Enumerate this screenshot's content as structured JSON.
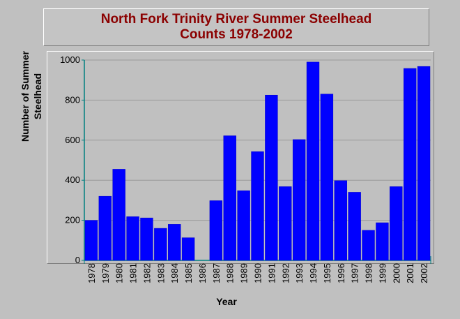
{
  "title_lines": [
    "North Fork Trinity River Summer Steelhead",
    "Counts 1978-2002"
  ],
  "colors": {
    "bar": "#0000ff",
    "background": "#c0c0c0",
    "title": "#8b0000",
    "axis": "#008080"
  },
  "chart_data": {
    "type": "bar",
    "title": "North Fork Trinity River Summer Steelhead Counts 1978-2002",
    "xlabel": "Year",
    "ylabel": "Number of Summer Steelhead",
    "ylim": [
      0,
      1000
    ],
    "yticks": [
      "0",
      "200",
      "400",
      "600",
      "800",
      "1000"
    ],
    "grid": true,
    "legend": "none",
    "categories": [
      "1978",
      "1979",
      "1980",
      "1981",
      "1982",
      "1983",
      "1984",
      "1985",
      "1986",
      "1987",
      "1988",
      "1989",
      "1990",
      "1991",
      "1992",
      "1993",
      "1994",
      "1995",
      "1996",
      "1997",
      "1998",
      "1999",
      "2000",
      "2001",
      "2002"
    ],
    "values": [
      200,
      320,
      455,
      218,
      212,
      160,
      180,
      113,
      0,
      298,
      622,
      348,
      543,
      825,
      368,
      603,
      990,
      830,
      398,
      340,
      150,
      188,
      368,
      958,
      968
    ]
  }
}
